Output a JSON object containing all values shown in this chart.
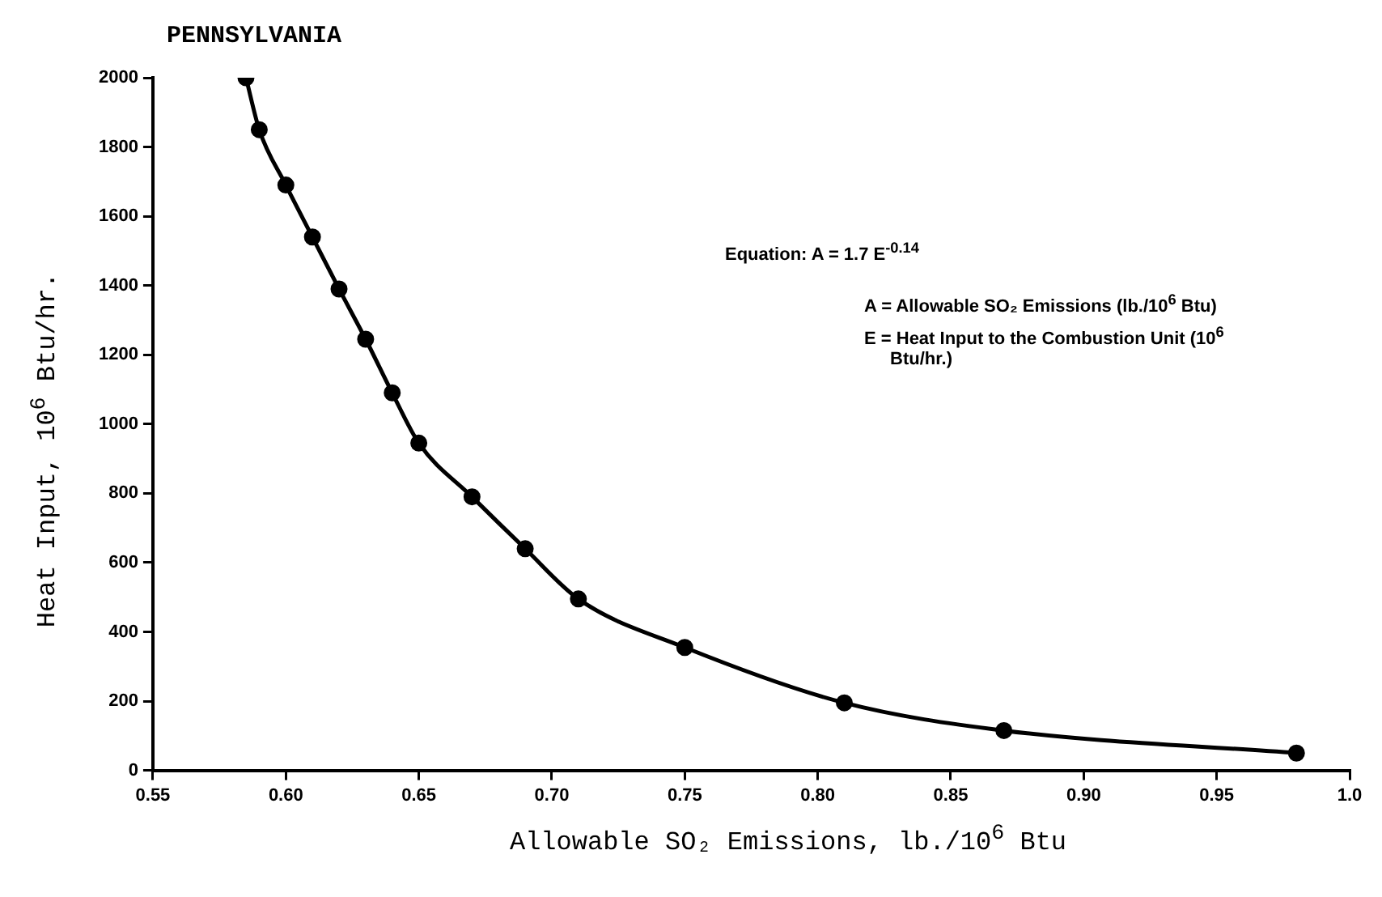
{
  "chart_data": {
    "type": "line",
    "title": "PENNSYLVANIA",
    "xlabel": "Allowable SO₂ Emissions, lb./10$^{6}$ Btu",
    "ylabel": "Heat Input, 10$^{6}$ Btu/hr.",
    "annotations": [
      "Equation: A = 1.7 E$^{-0.14}$",
      "A = Allowable SO₂ Emissions (lb./10$^{6}$ Btu)",
      "E = Heat Input to the Combustion Unit (10$^{6}$ Btu/hr.)"
    ],
    "series": [
      {
        "color": "#000000",
        "x": [
          0.585,
          0.59,
          0.6,
          0.61,
          0.62,
          0.63,
          0.64,
          0.65,
          0.67,
          0.69,
          0.71,
          0.75,
          0.81,
          0.87,
          0.98
        ],
        "values": [
          2000,
          1850,
          1690,
          1540,
          1390,
          1245,
          1090,
          945,
          790,
          640,
          495,
          355,
          195,
          115,
          50
        ]
      }
    ],
    "xlim": [
      0.55,
      1.0
    ],
    "xticks": [
      0.55,
      {
        "value": 0.6,
        "label": "0.60"
      },
      0.65,
      {
        "value": 0.7,
        "label": "0.70"
      },
      0.75,
      {
        "value": 0.8,
        "label": "0.80"
      },
      0.85,
      {
        "value": 0.9,
        "label": "0.90"
      },
      0.95,
      {
        "value": 1.0,
        "label": "1.0"
      }
    ],
    "ylim": [
      0,
      2000
    ],
    "yticks": [
      0,
      200,
      400,
      600,
      800,
      1000,
      1200,
      1400,
      1600,
      1800,
      2000
    ],
    "grid": false,
    "legend": false,
    "marker": "circle",
    "line_style": "solid"
  }
}
